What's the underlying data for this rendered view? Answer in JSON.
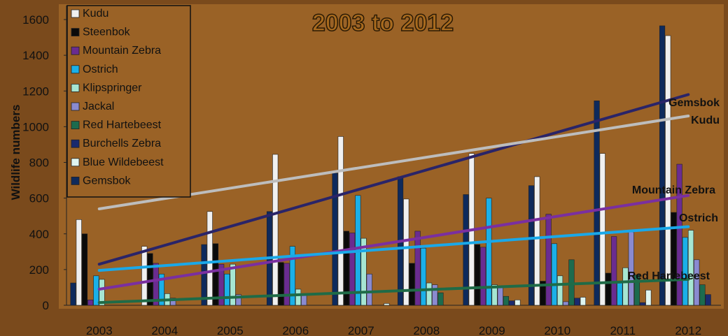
{
  "chart_data": {
    "type": "bar",
    "title": "2003 to 2012",
    "ylabel": "Wildlife numbers",
    "xlabel": "",
    "ylim": [
      0,
      1600
    ],
    "yticks": [
      "0",
      "200",
      "400",
      "600",
      "800",
      "1000",
      "1200",
      "1400",
      "1600"
    ],
    "categories": [
      "2003",
      "2004",
      "2005",
      "2006",
      "2007",
      "2008",
      "2009",
      "2010",
      "2011",
      "2012"
    ],
    "legend_position": "top-left",
    "grid": false,
    "colors": {
      "background": "#7a4a1c",
      "text": "#111111",
      "title_fill": "#a86a1e"
    },
    "series": [
      {
        "name": "Kudu",
        "color": "#f0f0f0",
        "values": [
          480,
          330,
          525,
          845,
          945,
          595,
          850,
          720,
          850,
          1510
        ]
      },
      {
        "name": "Steenbok",
        "color": "#0a0a0a",
        "values": [
          400,
          290,
          345,
          240,
          415,
          235,
          340,
          135,
          180,
          520
        ]
      },
      {
        "name": "Mountain Zebra",
        "color": "#6a2c91",
        "values": [
          30,
          235,
          230,
          235,
          405,
          415,
          325,
          510,
          385,
          790
        ]
      },
      {
        "name": "Ostrich",
        "color": "#1ab0e8",
        "values": [
          165,
          175,
          175,
          330,
          615,
          320,
          600,
          345,
          125,
          380
        ]
      },
      {
        "name": "Klipspringer",
        "color": "#a6e6d2",
        "values": [
          145,
          65,
          230,
          90,
          375,
          125,
          115,
          165,
          210,
          420
        ]
      },
      {
        "name": "Jackal",
        "color": "#8a8ad0",
        "values": [
          0,
          40,
          60,
          60,
          175,
          115,
          100,
          20,
          410,
          255
        ]
      },
      {
        "name": "Red Hartebeest",
        "color": "#1c6b4e",
        "values": [
          0,
          0,
          0,
          0,
          0,
          70,
          50,
          255,
          170,
          115
        ]
      },
      {
        "name": "Burchells Zebra",
        "color": "#1a2a6e",
        "values": [
          0,
          0,
          0,
          0,
          0,
          0,
          25,
          40,
          15,
          60
        ]
      },
      {
        "name": "Blue Wildebeest",
        "color": "#dff5f0",
        "values": [
          0,
          0,
          0,
          0,
          10,
          0,
          30,
          45,
          85,
          0
        ]
      },
      {
        "name": "Gemsbok",
        "color": "#0e2a5c",
        "values": [
          125,
          0,
          340,
          525,
          740,
          720,
          620,
          670,
          1145,
          1565
        ]
      }
    ],
    "trendlines": [
      {
        "label": "Gemsbok",
        "color": "#2a2468",
        "start": 230,
        "end": 1180
      },
      {
        "label": "Kudu",
        "color": "#bdbdbd",
        "start": 540,
        "end": 1060
      },
      {
        "label": "Mountain Zebra",
        "color": "#7a2fa0",
        "start": 90,
        "end": 615
      },
      {
        "label": "Ostrich",
        "color": "#1aa8e8",
        "start": 195,
        "end": 440
      },
      {
        "label": "Red Hartebeest",
        "color": "#1f6b47",
        "start": 15,
        "end": 145
      }
    ]
  }
}
